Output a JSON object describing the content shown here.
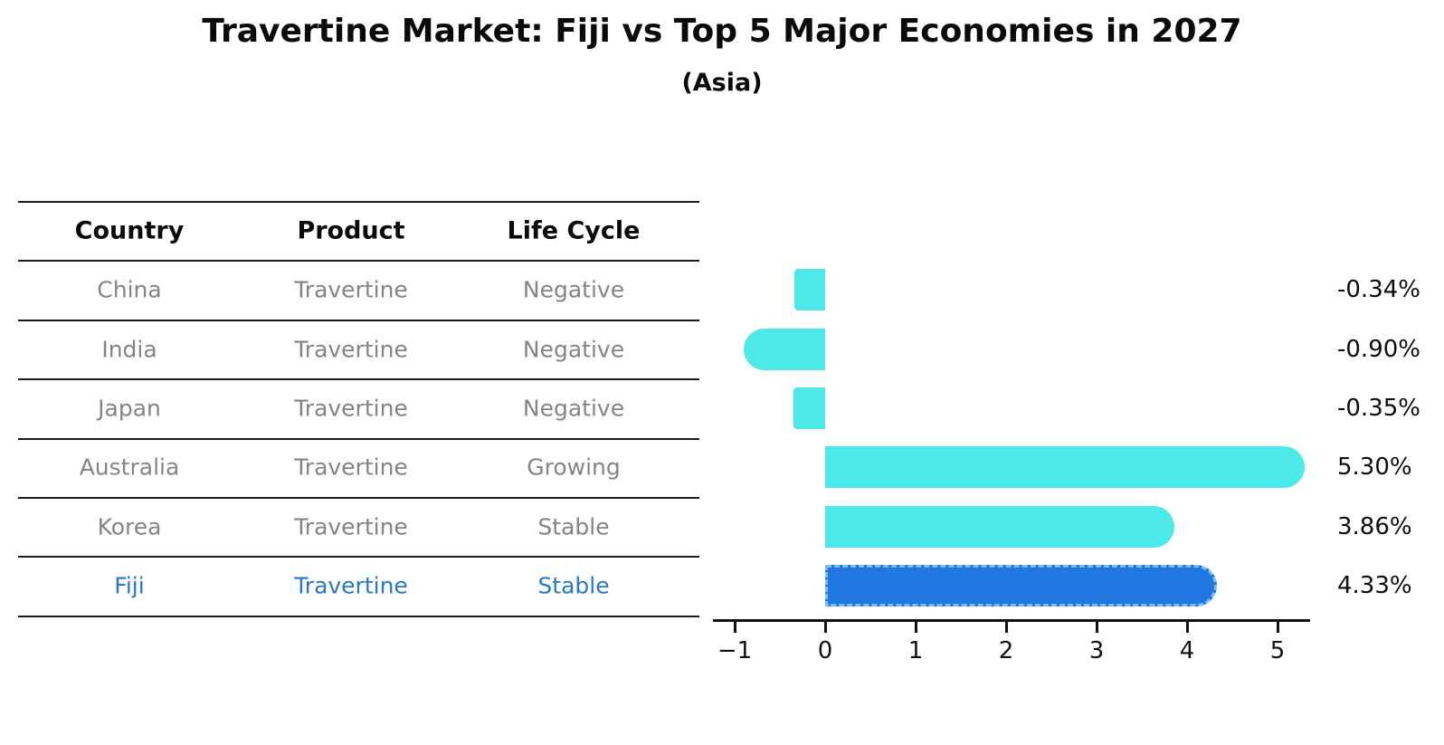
{
  "title": "Travertine Market: Fiji vs Top 5 Major Economies in 2027",
  "subtitle": "(Asia)",
  "table": {
    "headers": [
      "Country",
      "Product",
      "Life Cycle"
    ],
    "rows": [
      {
        "country": "China",
        "product": "Travertine",
        "life_cycle": "Negative",
        "highlight": false
      },
      {
        "country": "India",
        "product": "Travertine",
        "life_cycle": "Negative",
        "highlight": false
      },
      {
        "country": "Japan",
        "product": "Travertine",
        "life_cycle": "Negative",
        "highlight": false
      },
      {
        "country": "Australia",
        "product": "Travertine",
        "life_cycle": "Growing",
        "highlight": false
      },
      {
        "country": "Korea",
        "product": "Travertine",
        "life_cycle": "Stable",
        "highlight": false
      },
      {
        "country": "Fiji",
        "product": "Travertine",
        "life_cycle": "Stable",
        "highlight": true
      }
    ]
  },
  "chart_data": {
    "type": "bar",
    "orientation": "horizontal",
    "title": "Travertine Market: Fiji vs Top 5 Major Economies in 2027",
    "subtitle": "(Asia)",
    "categories": [
      "China",
      "India",
      "Japan",
      "Australia",
      "Korea",
      "Fiji"
    ],
    "values": [
      -0.34,
      -0.9,
      -0.35,
      5.3,
      3.86,
      4.33
    ],
    "value_labels": [
      "-0.34%",
      "-0.90%",
      "-0.35%",
      "5.30%",
      "3.86%",
      "4.33%"
    ],
    "highlight_index": 5,
    "x_tick_values": [
      -1,
      0,
      1,
      2,
      3,
      4,
      5
    ],
    "x_tick_labels": [
      "−1",
      "0",
      "1",
      "2",
      "3",
      "4",
      "5"
    ],
    "xlim": [
      -1.24,
      5.36
    ],
    "grid": false,
    "legend": false,
    "colors": {
      "bar": "#4DE9E9",
      "highlight_bar": "#2176E2",
      "highlight_border": "#79BCF6",
      "table_text": "#848484",
      "highlight_text": "#2878C8",
      "axis": "#111111"
    }
  }
}
